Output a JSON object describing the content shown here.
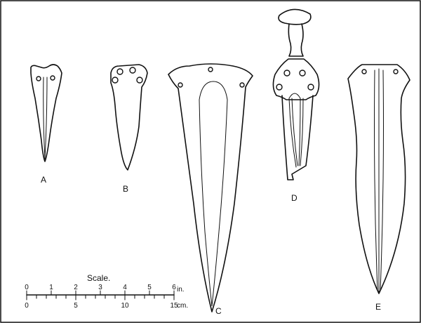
{
  "figures": [
    {
      "id": "a",
      "label": "A"
    },
    {
      "id": "b",
      "label": "B"
    },
    {
      "id": "c",
      "label": "C"
    },
    {
      "id": "d",
      "label": "D"
    },
    {
      "id": "e",
      "label": "E"
    }
  ],
  "scale": {
    "title": "Scale.",
    "inch_ticks": [
      "0",
      "1",
      "2",
      "3",
      "4",
      "5",
      "6"
    ],
    "inch_unit": "in.",
    "cm_ticks": [
      "0",
      "5",
      "10",
      "15"
    ],
    "cm_unit": "cm."
  }
}
